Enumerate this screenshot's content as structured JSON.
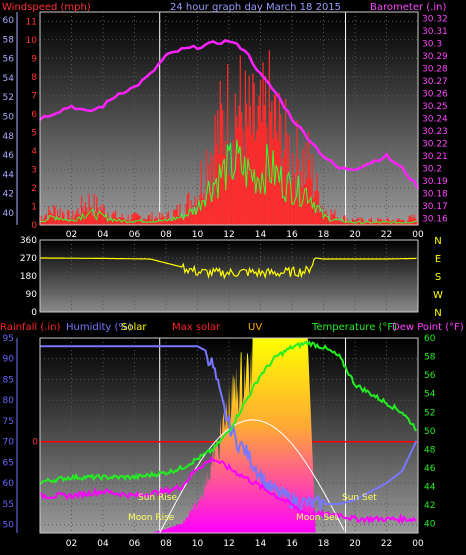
{
  "colors": {
    "windspeed": "#ff2a2a",
    "gust": "#ff0000",
    "wind_avg": "#33ff33",
    "barometer": "#ff22ff",
    "direction": "#ffff00",
    "humidity": "#7777ff",
    "solar": "#ffff00",
    "max_solar": "#ff0000",
    "uv": "#ff00ff",
    "temperature": "#22ee22",
    "dewpoint": "#ff00ff",
    "axis_left_top": "#ff3333",
    "axis_right_top": "#ff44ff",
    "axis_left_bottom": "#6666ff",
    "axis_right_bottom": "#22ee22",
    "title": "#9a9aff",
    "frame": "#dddddd"
  },
  "labels": {
    "windspeed": "Windspeed (mph)",
    "title": "24 hour graph day  March 18 2015",
    "barometer": "Barometer (.in)",
    "rainfall": "Rainfall (.in)",
    "humidity": "Humidity (%)",
    "solar": "Solar",
    "max_solar": "Max solar",
    "uv": "UV",
    "temperature": "Temperature (°F)",
    "dewpoint": "Dew Point (°F)",
    "sun_rise": "Sun Rise",
    "sun_set": "Sun Set",
    "moon_rise": "Moon Rise",
    "moon_set": "Moon Set"
  },
  "chart_data": [
    {
      "type": "line",
      "title": "24 hour graph day  March 18 2015",
      "x_ticks": [
        "02",
        "04",
        "06",
        "08",
        "10",
        "12",
        "14",
        "16",
        "18",
        "20",
        "22",
        "00"
      ],
      "y_left_label": "Windspeed (mph)",
      "y_left_ticks_outer": [
        40,
        42,
        44,
        46,
        48,
        50,
        52,
        54,
        56,
        58,
        60
      ],
      "y_left_ticks_inner": [
        0,
        1,
        2,
        3,
        4,
        5,
        6,
        7,
        8,
        9,
        10,
        11
      ],
      "y_left_range": [
        0,
        11.5
      ],
      "y_right_label": "Barometer (.in)",
      "y_right_ticks": [
        30.16,
        30.17,
        30.18,
        30.19,
        30.2,
        30.21,
        30.22,
        30.23,
        30.24,
        30.25,
        30.26,
        30.27,
        30.28,
        30.29,
        30.3,
        30.31,
        30.32
      ],
      "y_right_range": [
        30.155,
        30.325
      ],
      "series": [
        {
          "name": "Windspeed (mph)",
          "axis": "left",
          "x": [
            0,
            1,
            2,
            3,
            4,
            5,
            6,
            7,
            8,
            9,
            10,
            10.5,
            11,
            11.5,
            12,
            12.5,
            13,
            13.5,
            14,
            14.5,
            15,
            15.5,
            16,
            16.5,
            17,
            17.5,
            18,
            19,
            20,
            21,
            22,
            23,
            24
          ],
          "y": [
            0.5,
            1,
            0.5,
            1.5,
            1,
            0.5,
            0.5,
            0.5,
            0.5,
            1,
            2,
            4,
            5,
            6,
            7,
            7.5,
            6.5,
            6,
            6,
            7,
            6,
            5,
            4.5,
            4,
            4,
            2.5,
            1,
            0.5,
            0.3,
            0.3,
            0.3,
            0.3,
            0.5
          ]
        },
        {
          "name": "Barometer (.in)",
          "axis": "right",
          "x": [
            0,
            1,
            2,
            3,
            4,
            5,
            6,
            7,
            8,
            9,
            10,
            11,
            12,
            13,
            14,
            15,
            16,
            17,
            18,
            19,
            20,
            21,
            22,
            23,
            24
          ],
          "y": [
            30.24,
            30.245,
            30.25,
            30.245,
            30.25,
            30.26,
            30.265,
            30.275,
            30.29,
            30.295,
            30.297,
            30.3,
            30.302,
            30.295,
            30.275,
            30.26,
            30.24,
            30.225,
            30.21,
            30.2,
            30.2,
            30.205,
            30.21,
            30.2,
            30.185
          ]
        }
      ]
    },
    {
      "type": "line",
      "x_ticks": [
        "02",
        "04",
        "06",
        "08",
        "10",
        "12",
        "14",
        "16",
        "18",
        "20",
        "22",
        "00"
      ],
      "y_left_ticks": [
        0,
        90,
        180,
        270,
        360
      ],
      "y_right_ticks": [
        "N",
        "W",
        "S",
        "E",
        "N"
      ],
      "y_range": [
        0,
        360
      ],
      "series": [
        {
          "name": "Wind direction",
          "x": [
            0,
            4,
            7,
            8,
            9,
            10,
            11,
            12,
            13,
            14,
            15,
            16,
            17,
            17.5,
            18,
            20,
            22,
            24
          ],
          "y": [
            270,
            268,
            265,
            245,
            225,
            200,
            195,
            195,
            200,
            195,
            195,
            200,
            205,
            270,
            265,
            265,
            265,
            268
          ]
        }
      ]
    },
    {
      "type": "line",
      "x_ticks": [
        "02",
        "04",
        "06",
        "08",
        "10",
        "12",
        "14",
        "16",
        "18",
        "20",
        "22",
        "00"
      ],
      "y_left_label": "Humidity (%)",
      "y_left_ticks": [
        50,
        55,
        60,
        65,
        70,
        75,
        80,
        85,
        90,
        95
      ],
      "y_left_range": [
        48,
        95
      ],
      "y_rain_label": "Rainfall (.in)",
      "y_rain_ticks": [
        0
      ],
      "y_right_label": "Temperature (°F)",
      "y_right_ticks": [
        40,
        42,
        44,
        46,
        48,
        50,
        52,
        54,
        56,
        58,
        60
      ],
      "y_right_range": [
        39,
        60
      ],
      "series": [
        {
          "name": "Humidity (%)",
          "axis": "left",
          "x": [
            0,
            2,
            4,
            6,
            8,
            9,
            10,
            10.5,
            11,
            11.5,
            12,
            12.5,
            13,
            13.5,
            14,
            14.5,
            15,
            15.5,
            16,
            17,
            18,
            19,
            20,
            21,
            22,
            23,
            24
          ],
          "y": [
            93,
            93,
            93,
            93,
            93,
            93,
            93,
            92,
            88,
            80,
            74,
            70,
            68,
            65,
            62,
            59,
            58,
            57,
            56,
            55,
            55,
            55,
            56,
            58,
            60,
            63,
            71
          ]
        },
        {
          "name": "Temperature (°F)",
          "axis": "right",
          "x": [
            0,
            2,
            4,
            6,
            8,
            9,
            10,
            11,
            12,
            13,
            14,
            15,
            16,
            17,
            18,
            19,
            20,
            21,
            22,
            23,
            24
          ],
          "y": [
            44.5,
            45,
            45,
            45,
            45.5,
            46,
            47,
            48,
            50,
            53,
            56,
            58,
            59,
            59.5,
            59,
            58,
            55,
            54,
            53,
            52,
            50
          ]
        },
        {
          "name": "Dew Point (°F)",
          "axis": "right",
          "x": [
            0,
            2,
            4,
            6,
            8,
            9,
            10,
            11,
            12,
            13,
            14,
            15,
            16,
            17,
            18,
            19,
            20,
            21,
            22,
            23,
            24
          ],
          "y": [
            43,
            43,
            43.5,
            43,
            43.5,
            44,
            46,
            47,
            46,
            45,
            44,
            43,
            42,
            41,
            41,
            41,
            40.5,
            40.5,
            40.5,
            40.5,
            40.5
          ]
        },
        {
          "name": "Solar",
          "axis": "fill",
          "x": [
            7,
            8,
            9,
            9.5,
            10,
            10.5,
            11,
            11.5,
            12,
            12.5,
            13,
            13.5,
            14,
            14.5,
            15,
            15.5,
            16,
            16.5,
            17,
            17.5,
            18
          ],
          "y": [
            0,
            0.02,
            0.05,
            0.12,
            0.18,
            0.3,
            0.45,
            0.6,
            0.78,
            0.9,
            1,
            1,
            1,
            1,
            1,
            1,
            1,
            1,
            1,
            0,
            0
          ]
        }
      ],
      "annotations": [
        "Sun Rise",
        "Sun Set",
        "Moon Rise",
        "Moon Set"
      ]
    }
  ]
}
